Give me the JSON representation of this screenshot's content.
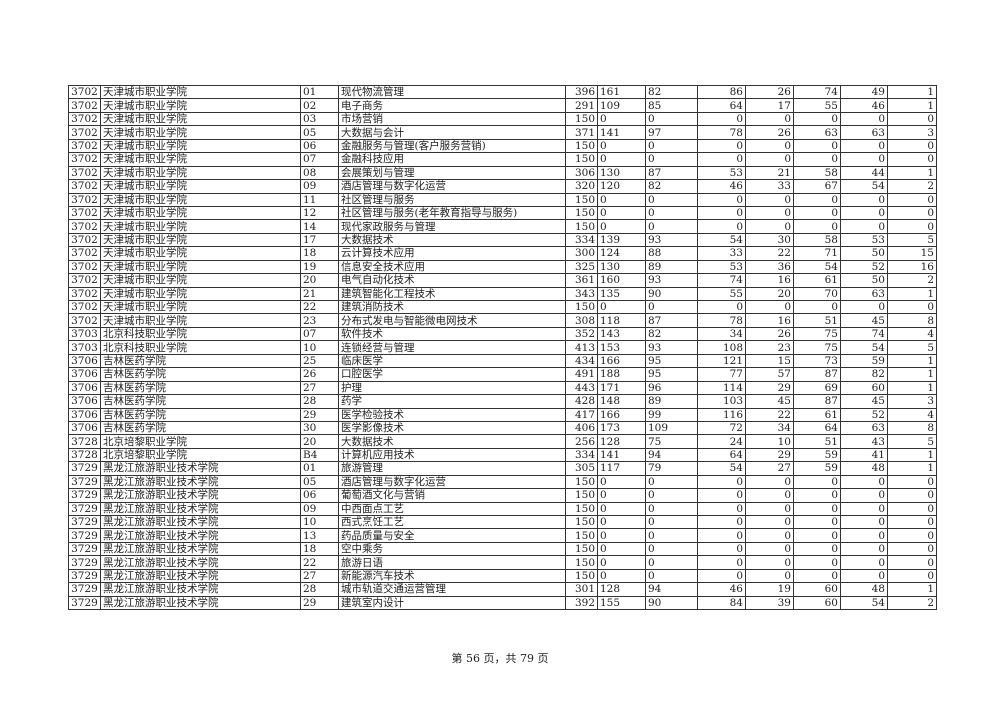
{
  "table": {
    "rows": [
      [
        "3702",
        "天津城市职业学院",
        "01",
        "现代物流管理",
        "396",
        "161",
        "82",
        "86",
        "26",
        "74",
        "49",
        "1"
      ],
      [
        "3702",
        "天津城市职业学院",
        "02",
        "电子商务",
        "291",
        "109",
        "85",
        "64",
        "17",
        "55",
        "46",
        "1"
      ],
      [
        "3702",
        "天津城市职业学院",
        "03",
        "市场营销",
        "150",
        "0",
        "0",
        "0",
        "0",
        "0",
        "0",
        "0"
      ],
      [
        "3702",
        "天津城市职业学院",
        "05",
        "大数据与会计",
        "371",
        "141",
        "97",
        "78",
        "26",
        "63",
        "63",
        "3"
      ],
      [
        "3702",
        "天津城市职业学院",
        "06",
        "金融服务与管理(客户服务营销)",
        "150",
        "0",
        "0",
        "0",
        "0",
        "0",
        "0",
        "0"
      ],
      [
        "3702",
        "天津城市职业学院",
        "07",
        "金融科技应用",
        "150",
        "0",
        "0",
        "0",
        "0",
        "0",
        "0",
        "0"
      ],
      [
        "3702",
        "天津城市职业学院",
        "08",
        "会展策划与管理",
        "306",
        "130",
        "87",
        "53",
        "21",
        "58",
        "44",
        "1"
      ],
      [
        "3702",
        "天津城市职业学院",
        "09",
        "酒店管理与数字化运营",
        "320",
        "120",
        "82",
        "46",
        "33",
        "67",
        "54",
        "2"
      ],
      [
        "3702",
        "天津城市职业学院",
        "11",
        "社区管理与服务",
        "150",
        "0",
        "0",
        "0",
        "0",
        "0",
        "0",
        "0"
      ],
      [
        "3702",
        "天津城市职业学院",
        "12",
        "社区管理与服务(老年教育指导与服务)",
        "150",
        "0",
        "0",
        "0",
        "0",
        "0",
        "0",
        "0"
      ],
      [
        "3702",
        "天津城市职业学院",
        "14",
        "现代家政服务与管理",
        "150",
        "0",
        "0",
        "0",
        "0",
        "0",
        "0",
        "0"
      ],
      [
        "3702",
        "天津城市职业学院",
        "17",
        "大数据技术",
        "334",
        "139",
        "93",
        "54",
        "30",
        "58",
        "53",
        "5"
      ],
      [
        "3702",
        "天津城市职业学院",
        "18",
        "云计算技术应用",
        "300",
        "124",
        "88",
        "33",
        "22",
        "71",
        "50",
        "15"
      ],
      [
        "3702",
        "天津城市职业学院",
        "19",
        "信息安全技术应用",
        "325",
        "130",
        "89",
        "53",
        "36",
        "54",
        "52",
        "16"
      ],
      [
        "3702",
        "天津城市职业学院",
        "20",
        "电气自动化技术",
        "361",
        "160",
        "93",
        "74",
        "16",
        "61",
        "50",
        "2"
      ],
      [
        "3702",
        "天津城市职业学院",
        "21",
        "建筑智能化工程技术",
        "343",
        "135",
        "90",
        "55",
        "20",
        "70",
        "63",
        "1"
      ],
      [
        "3702",
        "天津城市职业学院",
        "22",
        "建筑消防技术",
        "150",
        "0",
        "0",
        "0",
        "0",
        "0",
        "0",
        "0"
      ],
      [
        "3702",
        "天津城市职业学院",
        "23",
        "分布式发电与智能微电网技术",
        "308",
        "118",
        "87",
        "78",
        "16",
        "51",
        "45",
        "8"
      ],
      [
        "3703",
        "北京科技职业学院",
        "07",
        "软件技术",
        "352",
        "143",
        "82",
        "34",
        "26",
        "75",
        "74",
        "4"
      ],
      [
        "3703",
        "北京科技职业学院",
        "10",
        "连锁经营与管理",
        "413",
        "153",
        "93",
        "108",
        "23",
        "75",
        "54",
        "5"
      ],
      [
        "3706",
        "吉林医药学院",
        "25",
        "临床医学",
        "434",
        "166",
        "95",
        "121",
        "15",
        "73",
        "59",
        "1"
      ],
      [
        "3706",
        "吉林医药学院",
        "26",
        "口腔医学",
        "491",
        "188",
        "95",
        "77",
        "57",
        "87",
        "82",
        "1"
      ],
      [
        "3706",
        "吉林医药学院",
        "27",
        "护理",
        "443",
        "171",
        "96",
        "114",
        "29",
        "69",
        "60",
        "1"
      ],
      [
        "3706",
        "吉林医药学院",
        "28",
        "药学",
        "428",
        "148",
        "89",
        "103",
        "45",
        "87",
        "45",
        "3"
      ],
      [
        "3706",
        "吉林医药学院",
        "29",
        "医学检验技术",
        "417",
        "166",
        "99",
        "116",
        "22",
        "61",
        "52",
        "4"
      ],
      [
        "3706",
        "吉林医药学院",
        "30",
        "医学影像技术",
        "406",
        "173",
        "109",
        "72",
        "34",
        "64",
        "63",
        "8"
      ],
      [
        "3728",
        "北京培黎职业学院",
        "20",
        "大数据技术",
        "256",
        "128",
        "75",
        "24",
        "10",
        "51",
        "43",
        "5"
      ],
      [
        "3728",
        "北京培黎职业学院",
        "B4",
        "计算机应用技术",
        "334",
        "141",
        "94",
        "64",
        "29",
        "59",
        "41",
        "1"
      ],
      [
        "3729",
        "黑龙江旅游职业技术学院",
        "01",
        "旅游管理",
        "305",
        "117",
        "79",
        "54",
        "27",
        "59",
        "48",
        "1"
      ],
      [
        "3729",
        "黑龙江旅游职业技术学院",
        "05",
        "酒店管理与数字化运营",
        "150",
        "0",
        "0",
        "0",
        "0",
        "0",
        "0",
        "0"
      ],
      [
        "3729",
        "黑龙江旅游职业技术学院",
        "06",
        "葡萄酒文化与营销",
        "150",
        "0",
        "0",
        "0",
        "0",
        "0",
        "0",
        "0"
      ],
      [
        "3729",
        "黑龙江旅游职业技术学院",
        "09",
        "中西面点工艺",
        "150",
        "0",
        "0",
        "0",
        "0",
        "0",
        "0",
        "0"
      ],
      [
        "3729",
        "黑龙江旅游职业技术学院",
        "10",
        "西式烹饪工艺",
        "150",
        "0",
        "0",
        "0",
        "0",
        "0",
        "0",
        "0"
      ],
      [
        "3729",
        "黑龙江旅游职业技术学院",
        "13",
        "药品质量与安全",
        "150",
        "0",
        "0",
        "0",
        "0",
        "0",
        "0",
        "0"
      ],
      [
        "3729",
        "黑龙江旅游职业技术学院",
        "18",
        "空中乘务",
        "150",
        "0",
        "0",
        "0",
        "0",
        "0",
        "0",
        "0"
      ],
      [
        "3729",
        "黑龙江旅游职业技术学院",
        "22",
        "旅游日语",
        "150",
        "0",
        "0",
        "0",
        "0",
        "0",
        "0",
        "0"
      ],
      [
        "3729",
        "黑龙江旅游职业技术学院",
        "27",
        "新能源汽车技术",
        "150",
        "0",
        "0",
        "0",
        "0",
        "0",
        "0",
        "0"
      ],
      [
        "3729",
        "黑龙江旅游职业技术学院",
        "28",
        "城市轨道交通运营管理",
        "301",
        "128",
        "94",
        "46",
        "19",
        "60",
        "48",
        "1"
      ],
      [
        "3729",
        "黑龙江旅游职业技术学院",
        "29",
        "建筑室内设计",
        "392",
        "155",
        "90",
        "84",
        "39",
        "60",
        "54",
        "2"
      ]
    ]
  },
  "footer": {
    "page_text": "第 56 页，共 79 页"
  }
}
